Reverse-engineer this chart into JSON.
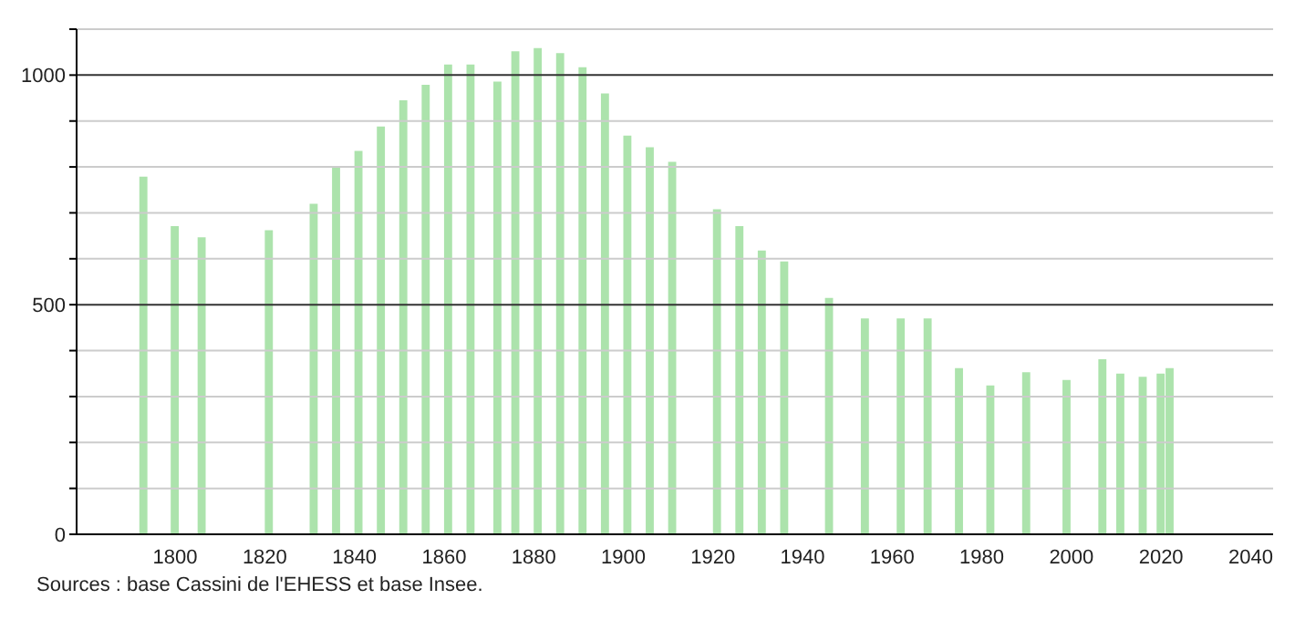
{
  "chart_data": {
    "type": "bar",
    "x": [
      1793,
      1800,
      1806,
      1821,
      1831,
      1836,
      1841,
      1846,
      1851,
      1856,
      1861,
      1866,
      1872,
      1876,
      1881,
      1886,
      1891,
      1896,
      1901,
      1906,
      1911,
      1921,
      1926,
      1931,
      1936,
      1946,
      1954,
      1962,
      1968,
      1975,
      1982,
      1990,
      1999,
      2007,
      2011,
      2016,
      2020,
      2022
    ],
    "values": [
      779,
      671,
      647,
      662,
      720,
      800,
      835,
      888,
      945,
      979,
      1023,
      1023,
      986,
      1052,
      1059,
      1048,
      1017,
      960,
      868,
      843,
      811,
      708,
      671,
      618,
      594,
      515,
      470,
      470,
      470,
      362,
      324,
      353,
      336,
      381,
      350,
      343,
      350,
      362
    ],
    "color": "#ace3ac",
    "xlim": [
      1778,
      2045
    ],
    "xticks": [
      1800,
      1820,
      1840,
      1860,
      1880,
      1900,
      1920,
      1940,
      1960,
      1980,
      2000,
      2020,
      2040
    ],
    "ylim": [
      0,
      1100
    ],
    "yticks": [
      0,
      {
        "value": 100,
        "label": null
      },
      {
        "value": 200,
        "label": null
      },
      {
        "value": 300,
        "label": null
      },
      {
        "value": 400,
        "label": null
      },
      500,
      {
        "value": 600,
        "label": null
      },
      {
        "value": 700,
        "label": null
      },
      {
        "value": 800,
        "label": null
      },
      {
        "value": 900,
        "label": null
      },
      1000,
      {
        "value": 1100,
        "label": null
      }
    ],
    "grid": "y",
    "annotations": [
      "Sources : base Cassini de l'EHESS et base Insee."
    ]
  }
}
